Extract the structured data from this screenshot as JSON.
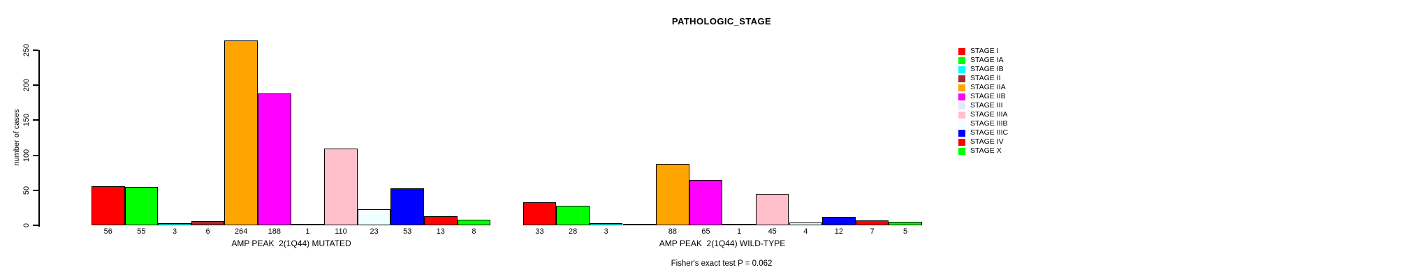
{
  "chart_data": {
    "type": "bar",
    "title": "PATHOLOGIC_STAGE",
    "ylabel": "number of cases",
    "ylim": [
      0,
      250
    ],
    "yticks": [
      0,
      50,
      100,
      150,
      200,
      250
    ],
    "grid": false,
    "legend_position": "right",
    "categories": [
      "STAGE I",
      "STAGE IA",
      "STAGE IB",
      "STAGE II",
      "STAGE IIA",
      "STAGE IIB",
      "STAGE III",
      "STAGE IIIA",
      "STAGE IIIB",
      "STAGE IIIC",
      "STAGE IV",
      "STAGE X"
    ],
    "palette": [
      "#FF0000",
      "#00FF00",
      "#00FFFF",
      "#A52A2A",
      "#FFA500",
      "#FF00FF",
      "#E6E6FA",
      "#FFC0CB",
      "#F0FFFF",
      "#0000FF",
      "#FF0000",
      "#00FF00"
    ],
    "groups": [
      {
        "key": "mutated",
        "label": "AMP PEAK  2(1Q44) MUTATED",
        "values": [
          56,
          55,
          3,
          6,
          264,
          188,
          1,
          110,
          23,
          53,
          13,
          8
        ],
        "bar_labels": [
          "56",
          "55",
          "3",
          "6",
          "264",
          "188",
          "1",
          "110",
          "23",
          "53",
          "13",
          "8"
        ]
      },
      {
        "key": "wild-type",
        "label": "AMP PEAK  2(1Q44) WILD-TYPE",
        "values": [
          33,
          28,
          3,
          0,
          88,
          65,
          1,
          45,
          4,
          12,
          7,
          5
        ],
        "bar_labels": [
          "33",
          "28",
          "3",
          "",
          "88",
          "65",
          "1",
          "45",
          "4",
          "12",
          "7",
          "5"
        ]
      }
    ],
    "annotation": "Fisher's exact test P = 0.062"
  }
}
